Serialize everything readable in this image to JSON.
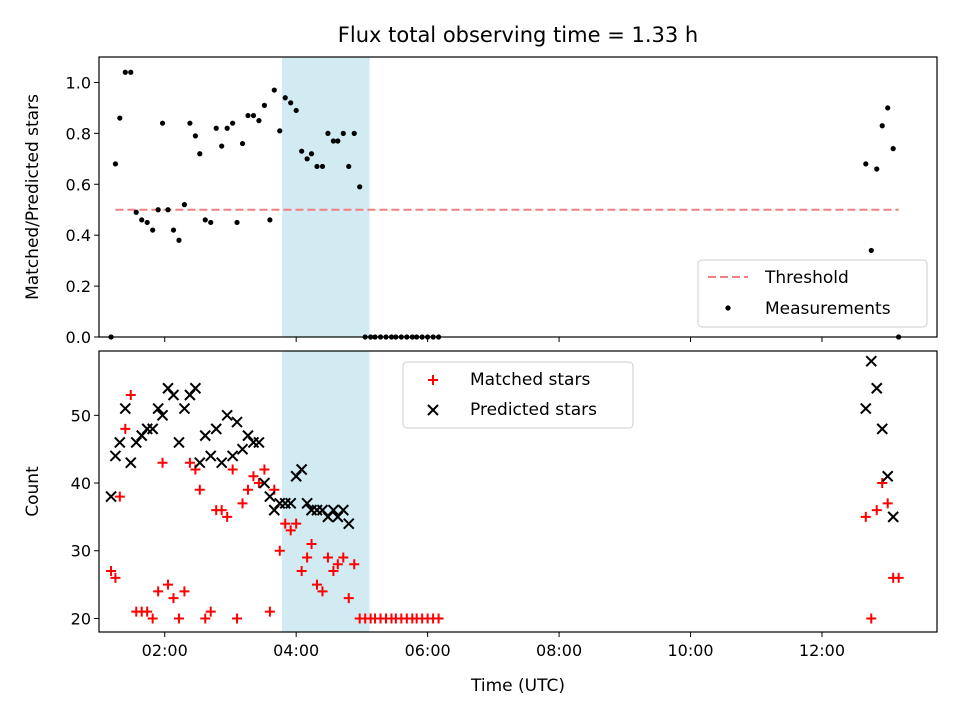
{
  "figure": {
    "title": "Flux total observing time = 1.33 h"
  },
  "colors": {
    "threshold": "#f08080",
    "span": "#add8e6",
    "matched": "#ff0000",
    "predicted": "#000000",
    "measure": "#000000"
  },
  "chart_data": [
    {
      "type": "scatter",
      "ylabel": "Matched/Predicted stars",
      "xlabel": "",
      "xlim": [
        "01:00",
        "13:45"
      ],
      "ylim": [
        0,
        1.1
      ],
      "yticks": [
        "0.0",
        "0.2",
        "0.4",
        "0.6",
        "0.8",
        "1.0"
      ],
      "shaded_span": [
        "03:47",
        "05:07"
      ],
      "legend": {
        "position": "lower right",
        "entries": [
          "Threshold",
          "Measurements"
        ]
      },
      "threshold": {
        "name": "Threshold",
        "y": 0.5,
        "x": [
          "01:15",
          "13:10"
        ]
      },
      "series": [
        {
          "name": "Measurements",
          "points": [
            [
              "01:11",
              0.0
            ],
            [
              "01:15",
              0.68
            ],
            [
              "01:19",
              0.86
            ],
            [
              "01:24",
              1.04
            ],
            [
              "01:29",
              1.04
            ],
            [
              "01:34",
              0.49
            ],
            [
              "01:39",
              0.46
            ],
            [
              "01:44",
              0.45
            ],
            [
              "01:49",
              0.42
            ],
            [
              "01:54",
              0.5
            ],
            [
              "01:58",
              0.84
            ],
            [
              "02:03",
              0.5
            ],
            [
              "02:08",
              0.42
            ],
            [
              "02:13",
              0.38
            ],
            [
              "02:18",
              0.52
            ],
            [
              "02:23",
              0.84
            ],
            [
              "02:28",
              0.79
            ],
            [
              "02:32",
              0.72
            ],
            [
              "02:37",
              0.46
            ],
            [
              "02:42",
              0.45
            ],
            [
              "02:47",
              0.82
            ],
            [
              "02:52",
              0.75
            ],
            [
              "02:57",
              0.82
            ],
            [
              "03:02",
              0.84
            ],
            [
              "03:06",
              0.45
            ],
            [
              "03:11",
              0.76
            ],
            [
              "03:16",
              0.87
            ],
            [
              "03:21",
              0.87
            ],
            [
              "03:26",
              0.85
            ],
            [
              "03:31",
              0.91
            ],
            [
              "03:36",
              0.46
            ],
            [
              "03:40",
              0.97
            ],
            [
              "03:45",
              0.81
            ],
            [
              "03:50",
              0.94
            ],
            [
              "03:55",
              0.92
            ],
            [
              "04:00",
              0.89
            ],
            [
              "04:05",
              0.73
            ],
            [
              "04:10",
              0.7
            ],
            [
              "04:14",
              0.72
            ],
            [
              "04:19",
              0.67
            ],
            [
              "04:24",
              0.67
            ],
            [
              "04:29",
              0.8
            ],
            [
              "04:34",
              0.77
            ],
            [
              "04:38",
              0.77
            ],
            [
              "04:43",
              0.8
            ],
            [
              "04:48",
              0.67
            ],
            [
              "04:53",
              0.8
            ],
            [
              "04:58",
              0.59
            ],
            [
              "05:03",
              0.0
            ],
            [
              "05:08",
              0.0
            ],
            [
              "05:12",
              0.0
            ],
            [
              "05:17",
              0.0
            ],
            [
              "05:22",
              0.0
            ],
            [
              "05:27",
              0.0
            ],
            [
              "05:31",
              0.0
            ],
            [
              "05:36",
              0.0
            ],
            [
              "05:41",
              0.0
            ],
            [
              "05:46",
              0.0
            ],
            [
              "05:50",
              0.0
            ],
            [
              "05:55",
              0.0
            ],
            [
              "06:00",
              0.0
            ],
            [
              "06:05",
              0.0
            ],
            [
              "06:10",
              0.0
            ],
            [
              "12:40",
              0.68
            ],
            [
              "12:45",
              0.34
            ],
            [
              "12:50",
              0.66
            ],
            [
              "12:55",
              0.83
            ],
            [
              "13:00",
              0.9
            ],
            [
              "13:05",
              0.74
            ],
            [
              "13:10",
              0.0
            ]
          ]
        }
      ]
    },
    {
      "type": "scatter",
      "ylabel": "Count",
      "xlabel": "Time (UTC)",
      "xlim": [
        "01:00",
        "13:45"
      ],
      "ylim": [
        18,
        59.5
      ],
      "yticks": [
        "20",
        "30",
        "40",
        "50"
      ],
      "xticks": [
        "02:00",
        "04:00",
        "06:00",
        "08:00",
        "10:00",
        "12:00"
      ],
      "shaded_span": [
        "03:47",
        "05:07"
      ],
      "legend": {
        "position": "upper center",
        "entries": [
          "Matched stars",
          "Predicted stars"
        ]
      },
      "series": [
        {
          "name": "Matched stars",
          "marker": "+",
          "points": [
            [
              "01:11",
              27
            ],
            [
              "01:15",
              26
            ],
            [
              "01:19",
              38
            ],
            [
              "01:24",
              48
            ],
            [
              "01:29",
              53
            ],
            [
              "01:34",
              21
            ],
            [
              "01:39",
              21
            ],
            [
              "01:44",
              21
            ],
            [
              "01:49",
              20
            ],
            [
              "01:54",
              24
            ],
            [
              "01:58",
              43
            ],
            [
              "02:03",
              25
            ],
            [
              "02:08",
              23
            ],
            [
              "02:13",
              20
            ],
            [
              "02:18",
              24
            ],
            [
              "02:23",
              43
            ],
            [
              "02:28",
              42
            ],
            [
              "02:32",
              39
            ],
            [
              "02:37",
              20
            ],
            [
              "02:42",
              21
            ],
            [
              "02:47",
              36
            ],
            [
              "02:52",
              36
            ],
            [
              "02:57",
              35
            ],
            [
              "03:02",
              42
            ],
            [
              "03:06",
              20
            ],
            [
              "03:11",
              37
            ],
            [
              "03:16",
              39
            ],
            [
              "03:21",
              41
            ],
            [
              "03:26",
              40
            ],
            [
              "03:31",
              42
            ],
            [
              "03:36",
              21
            ],
            [
              "03:40",
              39
            ],
            [
              "03:45",
              30
            ],
            [
              "03:50",
              34
            ],
            [
              "03:55",
              33
            ],
            [
              "04:00",
              34
            ],
            [
              "04:05",
              27
            ],
            [
              "04:10",
              29
            ],
            [
              "04:14",
              31
            ],
            [
              "04:19",
              25
            ],
            [
              "04:24",
              24
            ],
            [
              "04:29",
              29
            ],
            [
              "04:34",
              27
            ],
            [
              "04:38",
              28
            ],
            [
              "04:43",
              29
            ],
            [
              "04:48",
              23
            ],
            [
              "04:53",
              28
            ],
            [
              "04:58",
              20
            ],
            [
              "05:03",
              20
            ],
            [
              "05:08",
              20
            ],
            [
              "05:12",
              20
            ],
            [
              "05:17",
              20
            ],
            [
              "05:22",
              20
            ],
            [
              "05:27",
              20
            ],
            [
              "05:31",
              20
            ],
            [
              "05:36",
              20
            ],
            [
              "05:41",
              20
            ],
            [
              "05:46",
              20
            ],
            [
              "05:50",
              20
            ],
            [
              "05:55",
              20
            ],
            [
              "06:00",
              20
            ],
            [
              "06:05",
              20
            ],
            [
              "06:10",
              20
            ],
            [
              "12:40",
              35
            ],
            [
              "12:45",
              20
            ],
            [
              "12:50",
              36
            ],
            [
              "12:55",
              40
            ],
            [
              "13:00",
              37
            ],
            [
              "13:05",
              26
            ],
            [
              "13:10",
              26
            ]
          ]
        },
        {
          "name": "Predicted stars",
          "marker": "x",
          "points": [
            [
              "01:11",
              38
            ],
            [
              "01:15",
              44
            ],
            [
              "01:19",
              46
            ],
            [
              "01:24",
              51
            ],
            [
              "01:29",
              43
            ],
            [
              "01:34",
              46
            ],
            [
              "01:39",
              47
            ],
            [
              "01:44",
              48
            ],
            [
              "01:49",
              48
            ],
            [
              "01:54",
              51
            ],
            [
              "01:58",
              50
            ],
            [
              "02:03",
              54
            ],
            [
              "02:08",
              53
            ],
            [
              "02:13",
              46
            ],
            [
              "02:18",
              51
            ],
            [
              "02:23",
              53
            ],
            [
              "02:28",
              54
            ],
            [
              "02:32",
              43
            ],
            [
              "02:37",
              47
            ],
            [
              "02:42",
              44
            ],
            [
              "02:47",
              48
            ],
            [
              "02:52",
              43
            ],
            [
              "02:57",
              50
            ],
            [
              "03:02",
              44
            ],
            [
              "03:06",
              49
            ],
            [
              "03:11",
              45
            ],
            [
              "03:16",
              47
            ],
            [
              "03:21",
              46
            ],
            [
              "03:26",
              46
            ],
            [
              "03:31",
              40
            ],
            [
              "03:36",
              38
            ],
            [
              "03:40",
              36
            ],
            [
              "03:45",
              37
            ],
            [
              "03:50",
              37
            ],
            [
              "03:55",
              37
            ],
            [
              "04:00",
              41
            ],
            [
              "04:05",
              42
            ],
            [
              "04:10",
              37
            ],
            [
              "04:14",
              36
            ],
            [
              "04:19",
              36
            ],
            [
              "04:24",
              36
            ],
            [
              "04:29",
              35
            ],
            [
              "04:34",
              36
            ],
            [
              "04:38",
              35
            ],
            [
              "04:43",
              36
            ],
            [
              "04:48",
              34
            ],
            [
              "12:40",
              51
            ],
            [
              "12:45",
              58
            ],
            [
              "12:50",
              54
            ],
            [
              "12:55",
              48
            ],
            [
              "13:00",
              41
            ],
            [
              "13:05",
              35
            ]
          ]
        }
      ]
    }
  ]
}
